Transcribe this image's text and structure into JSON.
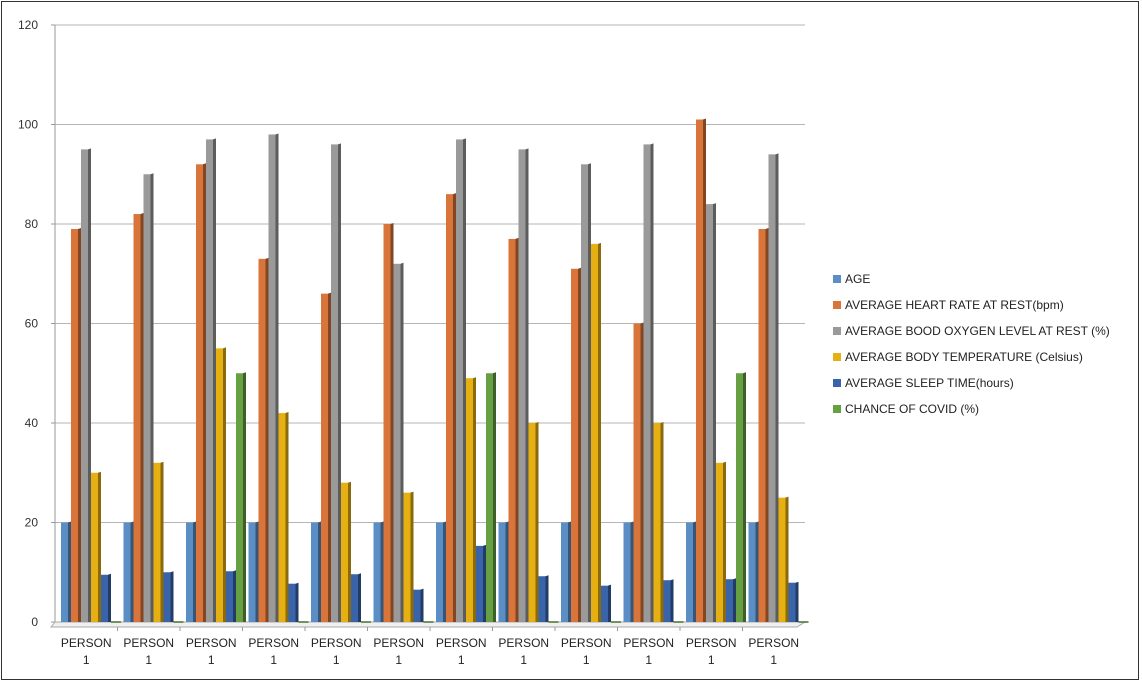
{
  "chart_data": {
    "type": "bar",
    "title": "",
    "xlabel": "",
    "ylabel": "",
    "ylim": [
      0,
      120
    ],
    "yticks": [
      0,
      20,
      40,
      60,
      80,
      100,
      120
    ],
    "grid": true,
    "legend_position": "right",
    "categories": [
      "PERSON 1",
      "PERSON 1",
      "PERSON 1",
      "PERSON 1",
      "PERSON 1",
      "PERSON 1",
      "PERSON 1",
      "PERSON 1",
      "PERSON 1",
      "PERSON 1",
      "PERSON 1",
      "PERSON 1"
    ],
    "series": [
      {
        "name": "AGE",
        "color": "#5b8ec4",
        "values": [
          20,
          20,
          20,
          20,
          20,
          20,
          20,
          20,
          20,
          20,
          20,
          20
        ]
      },
      {
        "name": "AVERAGE HEART RATE AT REST(bpm)",
        "color": "#d9743a",
        "values": [
          79,
          82,
          92,
          73,
          66,
          80,
          86,
          77,
          71,
          60,
          101,
          79
        ]
      },
      {
        "name": "AVERAGE BOOD OXYGEN LEVEL AT REST (%)",
        "color": "#9a9a9a",
        "values": [
          95,
          90,
          97,
          98,
          96,
          72,
          97,
          95,
          92,
          96,
          84,
          94
        ]
      },
      {
        "name": "AVERAGE BODY TEMPERATURE (Celsius)",
        "color": "#e6b012",
        "values": [
          30,
          32,
          55,
          42,
          28,
          26,
          49,
          40,
          76,
          40,
          32,
          25
        ]
      },
      {
        "name": "AVERAGE SLEEP TIME(hours)",
        "color": "#3a64aa",
        "values": [
          9.5,
          10,
          10.2,
          7.7,
          9.6,
          6.5,
          15.3,
          9.2,
          7.3,
          8.4,
          8.6,
          7.9
        ]
      },
      {
        "name": "CHANCE OF COVID (%)",
        "color": "#67a042",
        "values": [
          0,
          0,
          50,
          0,
          0,
          0,
          50,
          0,
          0,
          0,
          50,
          0
        ]
      }
    ]
  }
}
